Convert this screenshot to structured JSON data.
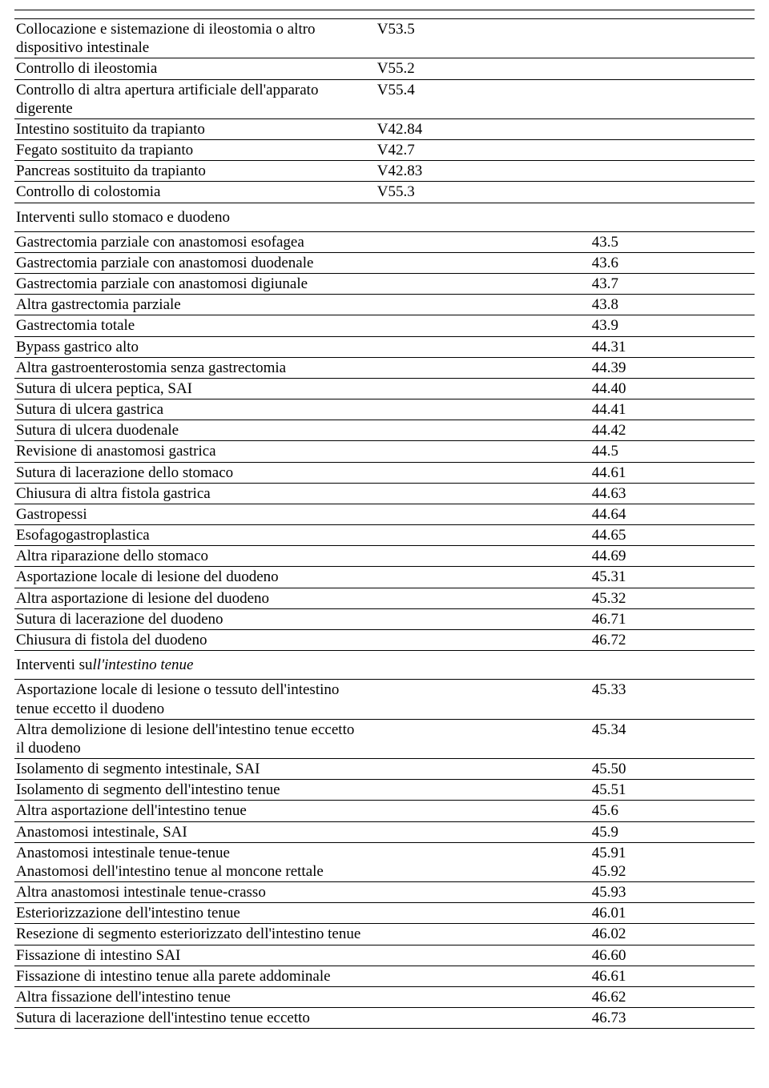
{
  "block1": {
    "rows": [
      {
        "desc": "Collocazione e sistemazione di ileostomia o altro dispositivo intestinale",
        "col2": "V53.5",
        "col3": ""
      },
      {
        "desc": "Controllo di ileostomia",
        "col2": "V55.2",
        "col3": ""
      },
      {
        "desc": "Controllo di altra apertura artificiale dell'apparato digerente",
        "col2": "V55.4",
        "col3": ""
      },
      {
        "desc": "Intestino sostituito da trapianto",
        "col2": "V42.84",
        "col3": ""
      },
      {
        "desc": "Fegato sostituito da trapianto",
        "col2": "V42.7",
        "col3": ""
      },
      {
        "desc": "Pancreas sostituito da trapianto",
        "col2": "V42.83",
        "col3": ""
      },
      {
        "desc": "Controllo di colostomia",
        "col2": "V55.3",
        "col3": ""
      }
    ]
  },
  "section2_title": "Interventi sullo stomaco e duodeno",
  "block2": {
    "rows": [
      {
        "desc": "Gastrectomia parziale con anastomosi esofagea",
        "col2": "",
        "col3": "43.5"
      },
      {
        "desc": "Gastrectomia parziale con anastomosi duodenale",
        "col2": "",
        "col3": "43.6"
      },
      {
        "desc": "Gastrectomia parziale con anastomosi digiunale",
        "col2": "",
        "col3": "43.7"
      },
      {
        "desc": "Altra gastrectomia parziale",
        "col2": "",
        "col3": "43.8"
      },
      {
        "desc": "Gastrectomia totale",
        "col2": "",
        "col3": "43.9"
      },
      {
        "desc": "Bypass gastrico alto",
        "col2": "",
        "col3": "44.31"
      },
      {
        "desc": "Altra gastroenterostomia senza gastrectomia",
        "col2": "",
        "col3": "44.39"
      },
      {
        "desc": "Sutura di ulcera peptica, SAI",
        "col2": "",
        "col3": "44.40"
      },
      {
        "desc": "Sutura di ulcera gastrica",
        "col2": "",
        "col3": "44.41"
      },
      {
        "desc": "Sutura di ulcera duodenale",
        "col2": "",
        "col3": "44.42"
      },
      {
        "desc": "Revisione di anastomosi gastrica",
        "col2": "",
        "col3": "44.5"
      },
      {
        "desc": "Sutura di lacerazione dello stomaco",
        "col2": "",
        "col3": "44.61"
      },
      {
        "desc": "Chiusura di altra fistola gastrica",
        "col2": "",
        "col3": "44.63"
      },
      {
        "desc": "Gastropessi",
        "col2": "",
        "col3": "44.64"
      },
      {
        "desc": "Esofagogastroplastica",
        "col2": "",
        "col3": "44.65"
      },
      {
        "desc": "Altra riparazione dello stomaco",
        "col2": "",
        "col3": "44.69"
      },
      {
        "desc": "Asportazione locale di lesione del duodeno",
        "col2": "",
        "col3": "45.31"
      },
      {
        "desc": "Altra asportazione di lesione del duodeno",
        "col2": "",
        "col3": "45.32"
      },
      {
        "desc": "Sutura di lacerazione del duodeno",
        "col2": "",
        "col3": "46.71"
      },
      {
        "desc": "Chiusura di fistola del duodeno",
        "col2": "",
        "col3": "46.72"
      }
    ]
  },
  "section3_title_plain": "Interventi su",
  "section3_title_italic": "ll'intestino tenue",
  "block3": {
    "rows": [
      {
        "desc": "Asportazione locale di lesione o tessuto dell'intestino tenue eccetto il duodeno",
        "col2": "",
        "col3": "45.33"
      },
      {
        "desc": "Altra demolizione di lesione dell'intestino tenue eccetto il duodeno",
        "col2": "",
        "col3": "45.34"
      },
      {
        "desc": "Isolamento di segmento intestinale, SAI",
        "col2": "",
        "col3": "45.50"
      },
      {
        "desc": "Isolamento di segmento dell'intestino tenue",
        "col2": "",
        "col3": "45.51"
      },
      {
        "desc": "Altra asportazione dell'intestino tenue",
        "col2": "",
        "col3": "45.6"
      },
      {
        "desc": "Anastomosi intestinale, SAI",
        "col2": "",
        "col3": "45.9"
      }
    ]
  },
  "block3b": {
    "desc1": "Anastomosi intestinale tenue-tenue",
    "code1": "45.91",
    "desc2": "Anastomosi dell'intestino tenue al moncone rettale",
    "code2": "45.92"
  },
  "block3c": {
    "rows": [
      {
        "desc": "Altra anastomosi intestinale tenue-crasso",
        "col2": "",
        "col3": "45.93"
      },
      {
        "desc": "Esteriorizzazione dell'intestino tenue",
        "col2": "",
        "col3": "46.01"
      },
      {
        "desc": "Resezione di segmento esteriorizzato dell'intestino tenue",
        "col2": "",
        "col3": "46.02"
      },
      {
        "desc": "Fissazione di intestino SAI",
        "col2": "",
        "col3": "46.60"
      },
      {
        "desc": "Fissazione di intestino tenue alla parete addominale",
        "col2": "",
        "col3": "46.61"
      },
      {
        "desc": "Altra fissazione dell'intestino tenue",
        "col2": "",
        "col3": "46.62"
      },
      {
        "desc": "Sutura di lacerazione dell'intestino tenue eccetto",
        "col2": "",
        "col3": "46.73"
      }
    ]
  }
}
